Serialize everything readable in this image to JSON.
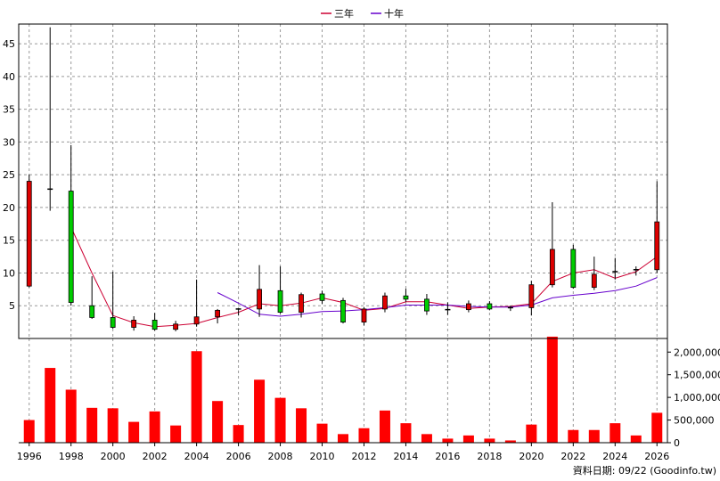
{
  "chart_data": {
    "type": "candlestick+bar",
    "legend": {
      "placement": "top-center",
      "items": [
        {
          "label": "三年",
          "color": "#cc0033"
        },
        {
          "label": "十年",
          "color": "#6600cc"
        }
      ]
    },
    "credit": "資料日期: 09/22 (Goodinfo.tw)",
    "x_tick_labels": [
      "1996",
      "1998",
      "2000",
      "2002",
      "2004",
      "2006",
      "2008",
      "2010",
      "2012",
      "2014",
      "2016",
      "2018",
      "2020",
      "2022",
      "2024",
      "2026"
    ],
    "price_axis": {
      "ticks": [
        "5",
        "10",
        "15",
        "20",
        "25",
        "30",
        "35",
        "40",
        "45"
      ],
      "ylim": [
        0,
        48
      ],
      "grid": true
    },
    "volume_axis": {
      "ticks": [
        "0",
        "500,000",
        "1,000,000",
        "1,500,000",
        "2,000,000"
      ],
      "ylim": [
        0,
        2300000
      ],
      "grid": false
    },
    "candles": [
      {
        "year": 1996,
        "open": 8,
        "high": 25,
        "low": 7.8,
        "close": 24,
        "direction": "down"
      },
      {
        "year": 1997,
        "open": 22.8,
        "high": 47.5,
        "low": 19.5,
        "close": 22.7,
        "direction": "flat"
      },
      {
        "year": 1998,
        "open": 22.5,
        "high": 29.5,
        "low": 5,
        "close": 5.5,
        "direction": "up"
      },
      {
        "year": 1999,
        "open": 5,
        "high": 9.5,
        "low": 3,
        "close": 3.2,
        "direction": "up"
      },
      {
        "year": 2000,
        "open": 3.2,
        "high": 10.2,
        "low": 1.5,
        "close": 1.7,
        "direction": "up"
      },
      {
        "year": 2001,
        "open": 1.7,
        "high": 3.4,
        "low": 1.2,
        "close": 2.8,
        "direction": "down"
      },
      {
        "year": 2002,
        "open": 2.8,
        "high": 3.9,
        "low": 1.2,
        "close": 1.4,
        "direction": "up"
      },
      {
        "year": 2003,
        "open": 1.4,
        "high": 2.7,
        "low": 1.1,
        "close": 2.2,
        "direction": "down"
      },
      {
        "year": 2004,
        "open": 2.2,
        "high": 9,
        "low": 1.8,
        "close": 3.3,
        "direction": "down"
      },
      {
        "year": 2005,
        "open": 3.3,
        "high": 4.5,
        "low": 2.3,
        "close": 4.3,
        "direction": "down"
      },
      {
        "year": 2006,
        "open": 4.4,
        "high": 4.6,
        "low": 3.5,
        "close": 4.5,
        "direction": "flat"
      },
      {
        "year": 2007,
        "open": 4.5,
        "high": 11.2,
        "low": 3.3,
        "close": 7.5,
        "direction": "down"
      },
      {
        "year": 2008,
        "open": 7.3,
        "high": 11,
        "low": 3.8,
        "close": 4,
        "direction": "up"
      },
      {
        "year": 2009,
        "open": 4,
        "high": 7,
        "low": 3.2,
        "close": 6.7,
        "direction": "down"
      },
      {
        "year": 2010,
        "open": 6.8,
        "high": 7.3,
        "low": 5.3,
        "close": 5.8,
        "direction": "up"
      },
      {
        "year": 2011,
        "open": 5.8,
        "high": 6.2,
        "low": 2.3,
        "close": 2.5,
        "direction": "up"
      },
      {
        "year": 2012,
        "open": 2.5,
        "high": 4.8,
        "low": 2,
        "close": 4.5,
        "direction": "down"
      },
      {
        "year": 2013,
        "open": 4.5,
        "high": 7,
        "low": 4,
        "close": 6.5,
        "direction": "down"
      },
      {
        "year": 2014,
        "open": 6.5,
        "high": 7.6,
        "low": 5.6,
        "close": 6,
        "direction": "up"
      },
      {
        "year": 2015,
        "open": 6,
        "high": 6.8,
        "low": 3.6,
        "close": 4.2,
        "direction": "up"
      },
      {
        "year": 2016,
        "open": 4.2,
        "high": 5.5,
        "low": 3.6,
        "close": 4.4,
        "direction": "flat"
      },
      {
        "year": 2017,
        "open": 4.4,
        "high": 5.8,
        "low": 4,
        "close": 5.3,
        "direction": "down"
      },
      {
        "year": 2018,
        "open": 5.3,
        "high": 5.7,
        "low": 4.3,
        "close": 4.5,
        "direction": "up"
      },
      {
        "year": 2019,
        "open": 4.5,
        "high": 5,
        "low": 4.2,
        "close": 4.7,
        "direction": "flat"
      },
      {
        "year": 2020,
        "open": 4.7,
        "high": 8.8,
        "low": 3.5,
        "close": 8.2,
        "direction": "down"
      },
      {
        "year": 2021,
        "open": 8.2,
        "high": 20.8,
        "low": 7.8,
        "close": 13.6,
        "direction": "down"
      },
      {
        "year": 2022,
        "open": 13.6,
        "high": 14.3,
        "low": 7.6,
        "close": 7.8,
        "direction": "up"
      },
      {
        "year": 2023,
        "open": 7.8,
        "high": 12.5,
        "low": 7.4,
        "close": 9.8,
        "direction": "down"
      },
      {
        "year": 2024,
        "open": 9.8,
        "high": 12.3,
        "low": 9,
        "close": 10.2,
        "direction": "flat"
      },
      {
        "year": 2025,
        "open": 10,
        "high": 11,
        "low": 9.6,
        "close": 10.5,
        "direction": "flat"
      },
      {
        "year": 2026,
        "open": 10.5,
        "high": 24,
        "low": 10,
        "close": 17.8,
        "direction": "down"
      }
    ],
    "ma_series": [
      {
        "name": "三年",
        "color": "#cc0033",
        "points": [
          [
            1998,
            17
          ],
          [
            1999,
            10
          ],
          [
            2000,
            3.5
          ],
          [
            2001,
            2.4
          ],
          [
            2002,
            1.8
          ],
          [
            2003,
            2
          ],
          [
            2004,
            2.3
          ],
          [
            2005,
            3.2
          ],
          [
            2006,
            4
          ],
          [
            2007,
            5.3
          ],
          [
            2008,
            5
          ],
          [
            2009,
            5.4
          ],
          [
            2010,
            6.2
          ],
          [
            2011,
            5.5
          ],
          [
            2012,
            4.3
          ],
          [
            2013,
            4.6
          ],
          [
            2014,
            5.6
          ],
          [
            2015,
            5.6
          ],
          [
            2016,
            5.1
          ],
          [
            2017,
            4.6
          ],
          [
            2018,
            4.8
          ],
          [
            2019,
            4.9
          ],
          [
            2020,
            5.3
          ],
          [
            2021,
            8.7
          ],
          [
            2022,
            10
          ],
          [
            2023,
            10.5
          ],
          [
            2024,
            9.2
          ],
          [
            2025,
            10.2
          ],
          [
            2026,
            12.5
          ]
        ]
      },
      {
        "name": "十年",
        "color": "#6600cc",
        "points": [
          [
            2005,
            7
          ],
          [
            2006,
            5.4
          ],
          [
            2007,
            3.7
          ],
          [
            2008,
            3.4
          ],
          [
            2009,
            3.7
          ],
          [
            2010,
            4.1
          ],
          [
            2011,
            4.2
          ],
          [
            2012,
            4.4
          ],
          [
            2013,
            4.7
          ],
          [
            2014,
            5.1
          ],
          [
            2015,
            5.1
          ],
          [
            2016,
            5.1
          ],
          [
            2017,
            4.9
          ],
          [
            2018,
            4.8
          ],
          [
            2019,
            4.8
          ],
          [
            2020,
            5.1
          ],
          [
            2021,
            6.2
          ],
          [
            2022,
            6.6
          ],
          [
            2023,
            6.9
          ],
          [
            2024,
            7.3
          ],
          [
            2025,
            8
          ],
          [
            2026,
            9.3
          ]
        ]
      }
    ],
    "volume": [
      {
        "year": 1996,
        "value": 500000
      },
      {
        "year": 1997,
        "value": 1650000
      },
      {
        "year": 1998,
        "value": 1170000
      },
      {
        "year": 1999,
        "value": 770000
      },
      {
        "year": 2000,
        "value": 760000
      },
      {
        "year": 2001,
        "value": 460000
      },
      {
        "year": 2002,
        "value": 690000
      },
      {
        "year": 2003,
        "value": 380000
      },
      {
        "year": 2004,
        "value": 2020000
      },
      {
        "year": 2005,
        "value": 920000
      },
      {
        "year": 2006,
        "value": 390000
      },
      {
        "year": 2007,
        "value": 1390000
      },
      {
        "year": 2008,
        "value": 990000
      },
      {
        "year": 2009,
        "value": 760000
      },
      {
        "year": 2010,
        "value": 420000
      },
      {
        "year": 2011,
        "value": 190000
      },
      {
        "year": 2012,
        "value": 320000
      },
      {
        "year": 2013,
        "value": 710000
      },
      {
        "year": 2014,
        "value": 430000
      },
      {
        "year": 2015,
        "value": 190000
      },
      {
        "year": 2016,
        "value": 90000
      },
      {
        "year": 2017,
        "value": 160000
      },
      {
        "year": 2018,
        "value": 90000
      },
      {
        "year": 2019,
        "value": 50000
      },
      {
        "year": 2020,
        "value": 400000
      },
      {
        "year": 2021,
        "value": 2340000
      },
      {
        "year": 2022,
        "value": 280000
      },
      {
        "year": 2023,
        "value": 280000
      },
      {
        "year": 2024,
        "value": 430000
      },
      {
        "year": 2025,
        "value": 160000
      },
      {
        "year": 2026,
        "value": 660000
      }
    ],
    "colors": {
      "candle_down": "#dd0000",
      "candle_up": "#00cc00",
      "candle_outline": "#000000",
      "volume_bar": "#ff0000",
      "grid": "#999999"
    }
  }
}
